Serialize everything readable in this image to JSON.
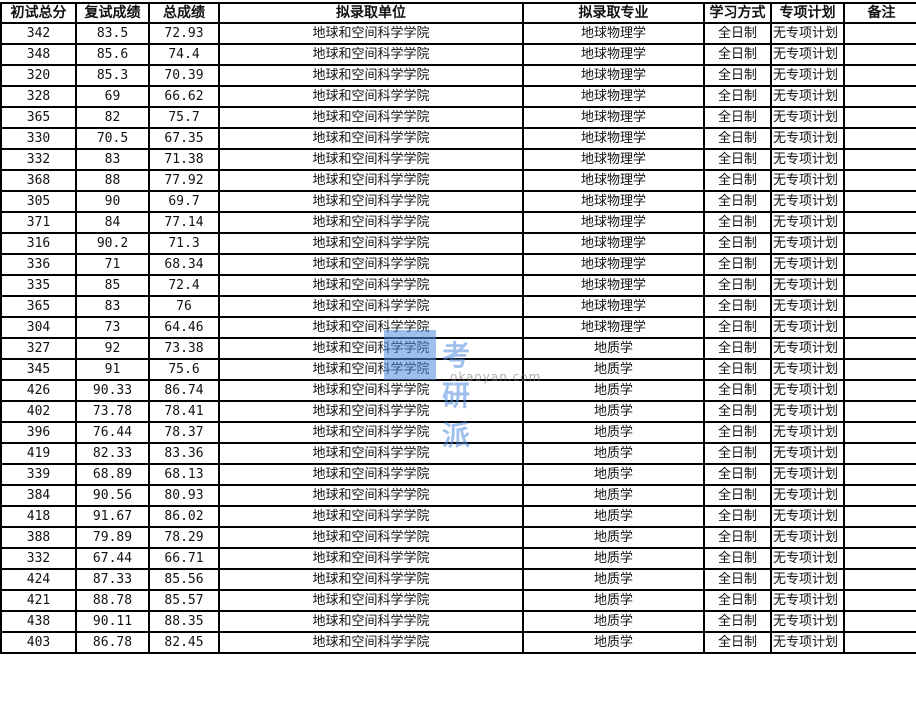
{
  "headers": [
    "初试总分",
    "复试成绩",
    "总成绩",
    "拟录取单位",
    "拟录取专业",
    "学习方式",
    "专项计划",
    "备注"
  ],
  "rows": [
    [
      "342",
      "83.5",
      "72.93",
      "地球和空间科学学院",
      "地球物理学",
      "全日制",
      "无专项计划",
      ""
    ],
    [
      "348",
      "85.6",
      "74.4",
      "地球和空间科学学院",
      "地球物理学",
      "全日制",
      "无专项计划",
      ""
    ],
    [
      "320",
      "85.3",
      "70.39",
      "地球和空间科学学院",
      "地球物理学",
      "全日制",
      "无专项计划",
      ""
    ],
    [
      "328",
      "69",
      "66.62",
      "地球和空间科学学院",
      "地球物理学",
      "全日制",
      "无专项计划",
      ""
    ],
    [
      "365",
      "82",
      "75.7",
      "地球和空间科学学院",
      "地球物理学",
      "全日制",
      "无专项计划",
      ""
    ],
    [
      "330",
      "70.5",
      "67.35",
      "地球和空间科学学院",
      "地球物理学",
      "全日制",
      "无专项计划",
      ""
    ],
    [
      "332",
      "83",
      "71.38",
      "地球和空间科学学院",
      "地球物理学",
      "全日制",
      "无专项计划",
      ""
    ],
    [
      "368",
      "88",
      "77.92",
      "地球和空间科学学院",
      "地球物理学",
      "全日制",
      "无专项计划",
      ""
    ],
    [
      "305",
      "90",
      "69.7",
      "地球和空间科学学院",
      "地球物理学",
      "全日制",
      "无专项计划",
      ""
    ],
    [
      "371",
      "84",
      "77.14",
      "地球和空间科学学院",
      "地球物理学",
      "全日制",
      "无专项计划",
      ""
    ],
    [
      "316",
      "90.2",
      "71.3",
      "地球和空间科学学院",
      "地球物理学",
      "全日制",
      "无专项计划",
      ""
    ],
    [
      "336",
      "71",
      "68.34",
      "地球和空间科学学院",
      "地球物理学",
      "全日制",
      "无专项计划",
      ""
    ],
    [
      "335",
      "85",
      "72.4",
      "地球和空间科学学院",
      "地球物理学",
      "全日制",
      "无专项计划",
      ""
    ],
    [
      "365",
      "83",
      "76",
      "地球和空间科学学院",
      "地球物理学",
      "全日制",
      "无专项计划",
      ""
    ],
    [
      "304",
      "73",
      "64.46",
      "地球和空间科学学院",
      "地球物理学",
      "全日制",
      "无专项计划",
      ""
    ],
    [
      "327",
      "92",
      "73.38",
      "地球和空间科学学院",
      "地质学",
      "全日制",
      "无专项计划",
      ""
    ],
    [
      "345",
      "91",
      "75.6",
      "地球和空间科学学院",
      "地质学",
      "全日制",
      "无专项计划",
      ""
    ],
    [
      "426",
      "90.33",
      "86.74",
      "地球和空间科学学院",
      "地质学",
      "全日制",
      "无专项计划",
      ""
    ],
    [
      "402",
      "73.78",
      "78.41",
      "地球和空间科学学院",
      "地质学",
      "全日制",
      "无专项计划",
      ""
    ],
    [
      "396",
      "76.44",
      "78.37",
      "地球和空间科学学院",
      "地质学",
      "全日制",
      "无专项计划",
      ""
    ],
    [
      "419",
      "82.33",
      "83.36",
      "地球和空间科学学院",
      "地质学",
      "全日制",
      "无专项计划",
      ""
    ],
    [
      "339",
      "68.89",
      "68.13",
      "地球和空间科学学院",
      "地质学",
      "全日制",
      "无专项计划",
      ""
    ],
    [
      "384",
      "90.56",
      "80.93",
      "地球和空间科学学院",
      "地质学",
      "全日制",
      "无专项计划",
      ""
    ],
    [
      "418",
      "91.67",
      "86.02",
      "地球和空间科学学院",
      "地质学",
      "全日制",
      "无专项计划",
      ""
    ],
    [
      "388",
      "79.89",
      "78.29",
      "地球和空间科学学院",
      "地质学",
      "全日制",
      "无专项计划",
      ""
    ],
    [
      "332",
      "67.44",
      "66.71",
      "地球和空间科学学院",
      "地质学",
      "全日制",
      "无专项计划",
      ""
    ],
    [
      "424",
      "87.33",
      "85.56",
      "地球和空间科学学院",
      "地质学",
      "全日制",
      "无专项计划",
      ""
    ],
    [
      "421",
      "88.78",
      "85.57",
      "地球和空间科学学院",
      "地质学",
      "全日制",
      "无专项计划",
      ""
    ],
    [
      "438",
      "90.11",
      "88.35",
      "地球和空间科学学院",
      "地质学",
      "全日制",
      "无专项计划",
      ""
    ],
    [
      "403",
      "86.78",
      "82.45",
      "地球和空间科学学院",
      "地质学",
      "全日制",
      "无专项计划",
      ""
    ]
  ],
  "watermark": {
    "brand": "考研派",
    "url": "okaoyan.com"
  }
}
